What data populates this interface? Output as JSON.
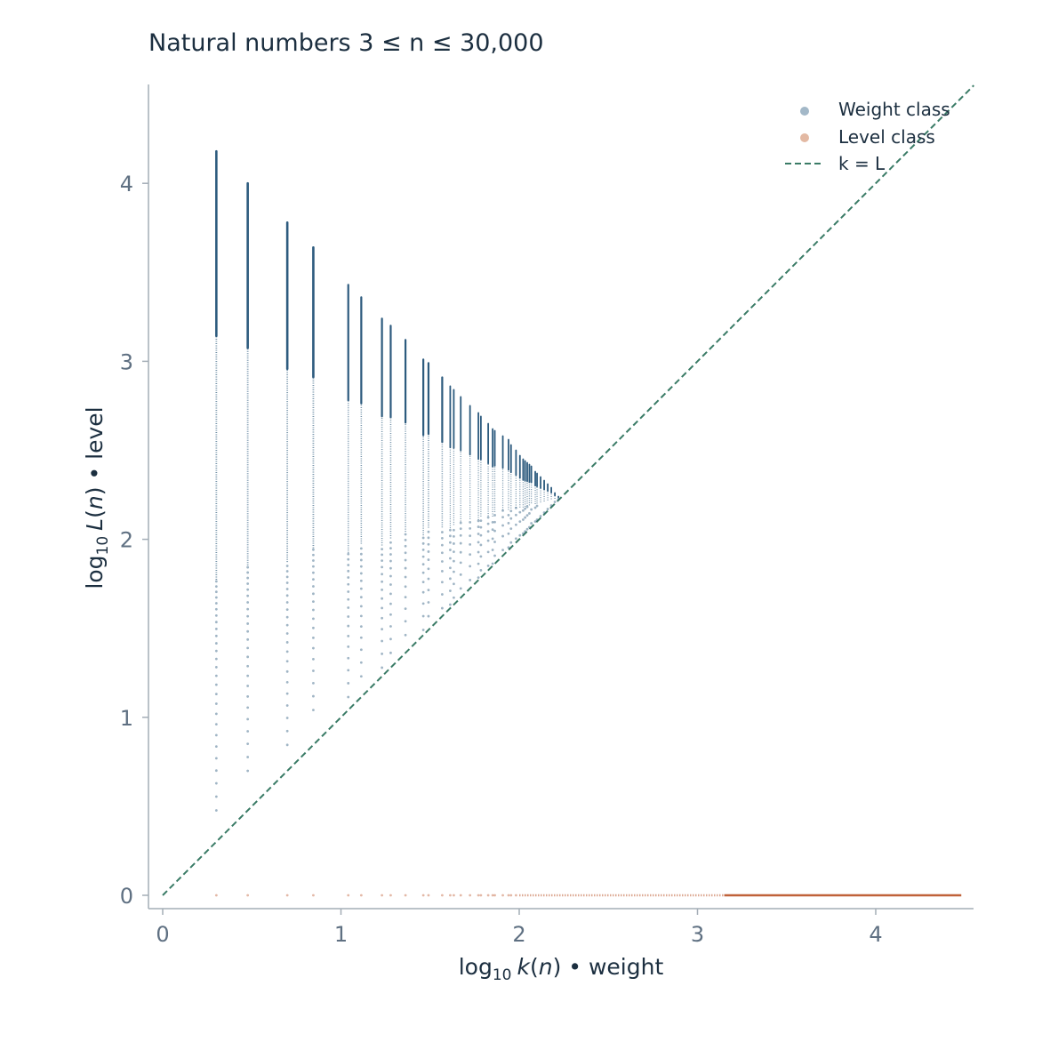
{
  "chart_data": {
    "type": "scatter",
    "title": "Natural numbers 3 ≤ n ≤ 30,000",
    "xlabel": {
      "prefix": "log",
      "sub": "10",
      "func": "k",
      "arg": "n",
      "suffix": "weight"
    },
    "ylabel": {
      "prefix": "log",
      "sub": "10",
      "func": "L",
      "arg": "n",
      "suffix": "level"
    },
    "xlim": [
      -0.08,
      4.55
    ],
    "ylim": [
      -0.08,
      4.55
    ],
    "x_ticks": [
      0,
      1,
      2,
      3,
      4
    ],
    "y_ticks": [
      0,
      1,
      2,
      3,
      4
    ],
    "x_tick_labels": [
      "0",
      "1",
      "2",
      "3",
      "4"
    ],
    "y_tick_labels": [
      "0",
      "1",
      "2",
      "3",
      "4"
    ],
    "grid": false,
    "legend_position": "top-right",
    "colors": {
      "weight": "#2d5b7e",
      "level": "#c0623a",
      "diagonal": "#3a7b66",
      "axis": "#a3adb6"
    },
    "series": [
      {
        "name": "Weight class",
        "marker": "dot",
        "columns": [
          {
            "x": 0.301,
            "y_min": 0.477,
            "y_max": 4.18
          },
          {
            "x": 0.477,
            "y_min": 0.699,
            "y_max": 4.0
          },
          {
            "x": 0.699,
            "y_min": 0.845,
            "y_max": 3.78
          },
          {
            "x": 0.845,
            "y_min": 1.041,
            "y_max": 3.64
          },
          {
            "x": 1.041,
            "y_min": 1.114,
            "y_max": 3.43
          },
          {
            "x": 1.114,
            "y_min": 1.23,
            "y_max": 3.36
          },
          {
            "x": 1.23,
            "y_min": 1.279,
            "y_max": 3.24
          },
          {
            "x": 1.279,
            "y_min": 1.362,
            "y_max": 3.2
          },
          {
            "x": 1.362,
            "y_min": 1.462,
            "y_max": 3.12
          },
          {
            "x": 1.462,
            "y_min": 1.491,
            "y_max": 3.01
          },
          {
            "x": 1.491,
            "y_min": 1.568,
            "y_max": 2.99
          },
          {
            "x": 1.568,
            "y_min": 1.613,
            "y_max": 2.91
          },
          {
            "x": 1.613,
            "y_min": 1.633,
            "y_max": 2.86
          },
          {
            "x": 1.633,
            "y_min": 1.672,
            "y_max": 2.84
          },
          {
            "x": 1.672,
            "y_min": 1.724,
            "y_max": 2.8
          },
          {
            "x": 1.724,
            "y_min": 1.771,
            "y_max": 2.75
          },
          {
            "x": 1.771,
            "y_min": 1.785,
            "y_max": 2.71
          },
          {
            "x": 1.785,
            "y_min": 1.826,
            "y_max": 2.69
          },
          {
            "x": 1.826,
            "y_min": 1.851,
            "y_max": 2.65
          },
          {
            "x": 1.851,
            "y_min": 1.863,
            "y_max": 2.62
          },
          {
            "x": 1.863,
            "y_min": 1.908,
            "y_max": 2.61
          },
          {
            "x": 1.908,
            "y_min": 1.94,
            "y_max": 2.58
          },
          {
            "x": 1.94,
            "y_min": 1.954,
            "y_max": 2.56
          },
          {
            "x": 1.954,
            "y_min": 1.982,
            "y_max": 2.53
          },
          {
            "x": 1.982,
            "y_min": 2.004,
            "y_max": 2.5
          },
          {
            "x": 2.004,
            "y_min": 2.022,
            "y_max": 2.47
          },
          {
            "x": 2.022,
            "y_min": 2.033,
            "y_max": 2.45
          },
          {
            "x": 2.033,
            "y_min": 2.045,
            "y_max": 2.44
          },
          {
            "x": 2.045,
            "y_min": 2.057,
            "y_max": 2.43
          },
          {
            "x": 2.057,
            "y_min": 2.068,
            "y_max": 2.42
          },
          {
            "x": 2.068,
            "y_min": 2.09,
            "y_max": 2.41
          },
          {
            "x": 2.09,
            "y_min": 2.1,
            "y_max": 2.38
          },
          {
            "x": 2.1,
            "y_min": 2.11,
            "y_max": 2.37
          },
          {
            "x": 2.12,
            "y_min": 2.13,
            "y_max": 2.35
          },
          {
            "x": 2.14,
            "y_min": 2.15,
            "y_max": 2.33
          },
          {
            "x": 2.16,
            "y_min": 2.17,
            "y_max": 2.31
          },
          {
            "x": 2.18,
            "y_min": 2.19,
            "y_max": 2.29
          },
          {
            "x": 2.2,
            "y_min": 2.21,
            "y_max": 2.26
          },
          {
            "x": 2.22,
            "y_min": 2.225,
            "y_max": 2.24
          }
        ]
      },
      {
        "name": "Level class",
        "marker": "dot",
        "y": 0,
        "x_values": [
          0.301,
          0.477,
          0.699,
          0.845,
          1.041,
          1.114,
          1.23,
          1.279,
          1.362,
          1.462,
          1.491,
          1.568,
          1.613,
          1.633,
          1.672,
          1.724,
          1.771,
          1.785,
          1.826,
          1.851,
          1.863,
          1.908,
          1.94,
          1.954,
          1.982
        ],
        "dense_from": 2.0,
        "solid_from": 3.15,
        "x_max": 4.48
      },
      {
        "name": "k = L",
        "style": "dashed",
        "x": [
          0,
          4.55
        ],
        "y": [
          0,
          4.55
        ]
      }
    ]
  }
}
